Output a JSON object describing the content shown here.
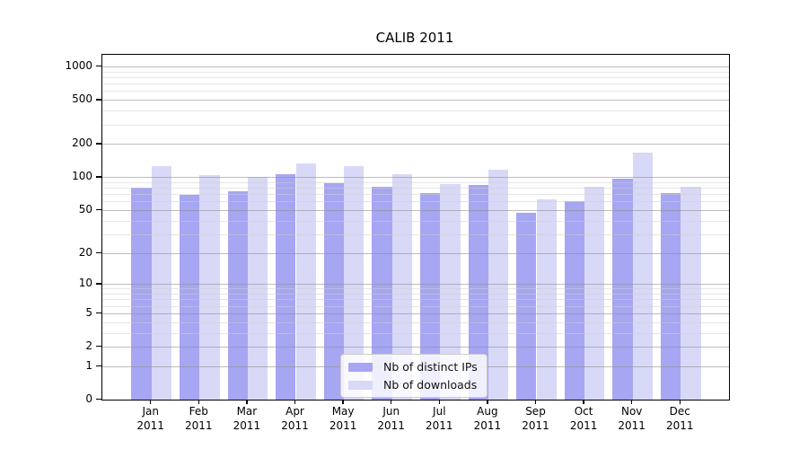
{
  "chart_data": {
    "type": "bar",
    "title": "CALIB 2011",
    "xlabel": "",
    "ylabel": "",
    "yscale": "log1p",
    "ylim": [
      0,
      1276
    ],
    "yticks": [
      0,
      1,
      2,
      5,
      10,
      20,
      50,
      100,
      200,
      500,
      1000
    ],
    "yticks_minor": [
      3,
      4,
      6,
      7,
      8,
      9,
      30,
      40,
      60,
      70,
      80,
      90,
      300,
      400,
      600,
      700,
      800,
      900
    ],
    "grid": "on",
    "legend_position": "lower center",
    "categories": [
      "Jan 2011",
      "Feb 2011",
      "Mar 2011",
      "Apr 2011",
      "May 2011",
      "Jun 2011",
      "Jul 2011",
      "Aug 2011",
      "Sep 2011",
      "Oct 2011",
      "Nov 2011",
      "Dec 2011"
    ],
    "series": [
      {
        "name": "Nb of distinct IPs",
        "color": "#a6a6f2",
        "values": [
          80,
          69,
          74,
          106,
          88,
          81,
          71,
          84,
          47,
          60,
          97,
          71
        ]
      },
      {
        "name": "Nb of downloads",
        "color": "#d8d8f7",
        "values": [
          127,
          104,
          100,
          133,
          125,
          107,
          87,
          116,
          63,
          82,
          168,
          82
        ]
      }
    ],
    "colors": {
      "frame": "#000000",
      "grid_major": "#b3b3b3",
      "grid_minor": "#e6e6e6",
      "background": "#ffffff"
    }
  }
}
